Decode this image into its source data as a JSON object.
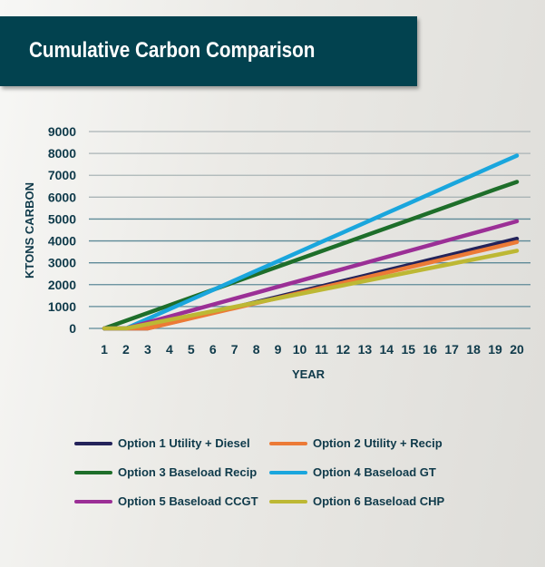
{
  "chart_data": {
    "type": "line",
    "title": "Cumulative Carbon Comparison",
    "xlabel": "YEAR",
    "ylabel": "KTONS CARBON",
    "x": [
      1,
      2,
      3,
      4,
      5,
      6,
      7,
      8,
      9,
      10,
      11,
      12,
      13,
      14,
      15,
      16,
      17,
      18,
      19,
      20
    ],
    "ylim": [
      0,
      9000
    ],
    "yticks": [
      0,
      1000,
      2000,
      3000,
      4000,
      5000,
      6000,
      7000,
      8000,
      9000
    ],
    "grid": true,
    "legend_position": "bottom",
    "series": [
      {
        "name": "Option 1 Utility + Diesel",
        "color": "#24235a",
        "values": [
          0,
          0,
          0,
          241,
          482,
          723,
          964,
          1205,
          1446,
          1687,
          1928,
          2169,
          2410,
          2651,
          2892,
          3133,
          3374,
          3615,
          3856,
          4100
        ]
      },
      {
        "name": "Option 2 Utility + Recip",
        "color": "#ec7a36",
        "values": [
          0,
          0,
          0,
          232,
          464,
          696,
          928,
          1160,
          1392,
          1624,
          1856,
          2088,
          2320,
          2552,
          2784,
          3016,
          3248,
          3480,
          3712,
          3950
        ]
      },
      {
        "name": "Option 3 Baseload Recip",
        "color": "#1e6e2a",
        "values": [
          0,
          353,
          706,
          1059,
          1412,
          1765,
          2118,
          2471,
          2824,
          3177,
          3530,
          3883,
          4236,
          4589,
          4942,
          5295,
          5648,
          6001,
          6354,
          6700
        ]
      },
      {
        "name": "Option 4 Baseload GT",
        "color": "#1aa6dd",
        "values": [
          0,
          0,
          439,
          878,
          1317,
          1756,
          2195,
          2634,
          3073,
          3512,
          3951,
          4390,
          4829,
          5268,
          5707,
          6146,
          6585,
          7024,
          7463,
          7900
        ]
      },
      {
        "name": "Option 5 Baseload CCGT",
        "color": "#9b2f96",
        "values": [
          0,
          0,
          272,
          544,
          816,
          1088,
          1360,
          1632,
          1904,
          2176,
          2448,
          2720,
          2992,
          3264,
          3536,
          3808,
          4080,
          4352,
          4624,
          4900
        ]
      },
      {
        "name": "Option 6 Baseload CHP",
        "color": "#bdb834",
        "values": [
          0,
          0,
          197,
          394,
          591,
          788,
          985,
          1182,
          1379,
          1576,
          1773,
          1970,
          2167,
          2364,
          2561,
          2758,
          2955,
          3152,
          3349,
          3550
        ]
      }
    ]
  }
}
